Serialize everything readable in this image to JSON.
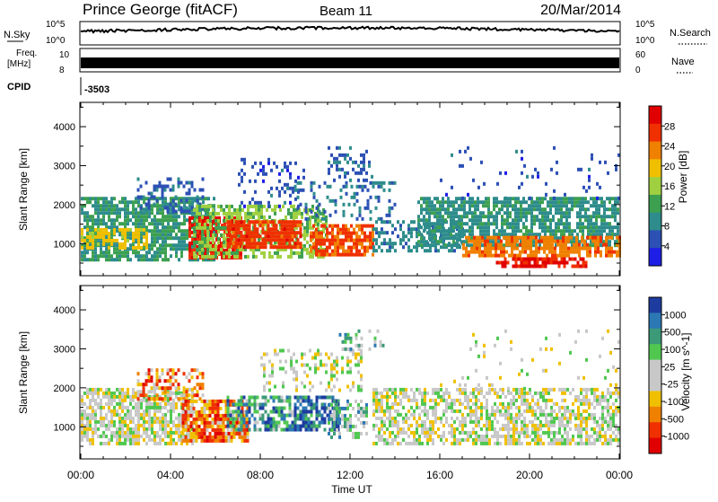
{
  "header": {
    "station": "Prince George (fitACF)",
    "beam": "Beam 11",
    "date": "20/Mar/2014"
  },
  "side_labels": {
    "nsky": "N.Sky",
    "nsearch": "N.Search",
    "freq": "Freq.",
    "freq_unit": "[MHz]",
    "nave": "Nave",
    "cpid": "CPID",
    "cpid_value": "-3503",
    "nsky_ticks": [
      "10^5",
      "10^0"
    ],
    "nsearch_ticks": [
      "10^5",
      "10^0"
    ],
    "freq_ticks": [
      "10",
      "8"
    ],
    "nave_ticks": [
      "60",
      "0"
    ]
  },
  "colors": {
    "power": [
      "#1e1ee6",
      "#2c50b4",
      "#2e8c8c",
      "#3ca050",
      "#a0d040",
      "#f0c000",
      "#f08000",
      "#f03000",
      "#e00000"
    ],
    "velocity": [
      "#e00000",
      "#f03000",
      "#f08000",
      "#f0c000",
      "#c8c8c8",
      "#c8c8c8",
      "#50c850",
      "#3c9a78",
      "#2c78b4",
      "#1e3ca0"
    ]
  },
  "chart_data": [
    {
      "type": "heatmap",
      "title": "Power",
      "ylabel": "Slant Range [km]",
      "xlabel": "",
      "xlim": [
        "00:00",
        "24:00"
      ],
      "ylim": [
        200,
        4600
      ],
      "yticks": [
        1000,
        2000,
        3000,
        4000
      ],
      "colorbar": {
        "label": "Power [dB]",
        "ticks": [
          "28",
          "24",
          "20",
          "16",
          "12",
          "8",
          "4"
        ],
        "range": [
          0,
          30
        ]
      },
      "regions": [
        {
          "t0": 0.0,
          "t1": 6.0,
          "r0": 600,
          "r1": 2200,
          "value": 10,
          "density": 0.75
        },
        {
          "t0": 2.5,
          "t1": 5.5,
          "r0": 1800,
          "r1": 2700,
          "value": 6,
          "density": 0.35
        },
        {
          "t0": 0.0,
          "t1": 3.0,
          "r0": 900,
          "r1": 1400,
          "value": 18,
          "density": 0.6
        },
        {
          "t0": 4.8,
          "t1": 7.2,
          "r0": 600,
          "r1": 1700,
          "value": 27,
          "density": 0.8
        },
        {
          "t0": 5.0,
          "t1": 11.0,
          "r0": 700,
          "r1": 2000,
          "value": 14,
          "density": 0.6
        },
        {
          "t0": 6.5,
          "t1": 9.8,
          "r0": 900,
          "r1": 1600,
          "value": 25,
          "density": 0.8
        },
        {
          "t0": 10.2,
          "t1": 13.0,
          "r0": 700,
          "r1": 1500,
          "value": 24,
          "density": 0.75
        },
        {
          "t0": 9.5,
          "t1": 14.0,
          "r0": 1600,
          "r1": 2600,
          "value": 7,
          "density": 0.25
        },
        {
          "t0": 11.0,
          "t1": 13.0,
          "r0": 2600,
          "r1": 3500,
          "value": 6,
          "density": 0.3
        },
        {
          "t0": 7.0,
          "t1": 10.0,
          "r0": 2000,
          "r1": 3200,
          "value": 5,
          "density": 0.2
        },
        {
          "t0": 13.0,
          "t1": 17.0,
          "r0": 800,
          "r1": 1600,
          "value": 8,
          "density": 0.45
        },
        {
          "t0": 15.0,
          "t1": 24.0,
          "r0": 1000,
          "r1": 2200,
          "value": 9,
          "density": 0.75
        },
        {
          "t0": 17.0,
          "t1": 24.0,
          "r0": 700,
          "r1": 1200,
          "value": 22,
          "density": 0.75
        },
        {
          "t0": 18.5,
          "t1": 22.5,
          "r0": 380,
          "r1": 650,
          "value": 27,
          "density": 0.7
        },
        {
          "t0": 16.0,
          "t1": 24.0,
          "r0": 2200,
          "r1": 3500,
          "value": 5,
          "density": 0.06
        }
      ]
    },
    {
      "type": "heatmap",
      "title": "Velocity",
      "ylabel": "Slant Range [km]",
      "xlabel": "Time UT",
      "xlim": [
        "00:00",
        "24:00"
      ],
      "xticks": [
        "00:00",
        "04:00",
        "08:00",
        "12:00",
        "16:00",
        "20:00",
        "00:00"
      ],
      "ylim": [
        200,
        4600
      ],
      "yticks": [
        1000,
        2000,
        3000,
        4000
      ],
      "colorbar": {
        "label": "Velocity [m s^-1]",
        "ticks": [
          "1000",
          "500",
          "100",
          "25",
          "-25",
          "-100",
          "-500",
          "-1000"
        ]
      },
      "regions": [
        {
          "t0": 0.0,
          "t1": 5.0,
          "r0": 600,
          "r1": 2000,
          "value": 4.5,
          "density": 0.7
        },
        {
          "t0": 2.5,
          "t1": 5.5,
          "r0": 1700,
          "r1": 2500,
          "value": 2.2,
          "density": 0.45
        },
        {
          "t0": 4.5,
          "t1": 7.5,
          "r0": 600,
          "r1": 1700,
          "value": 2.0,
          "density": 0.8
        },
        {
          "t0": 6.5,
          "t1": 10.5,
          "r0": 900,
          "r1": 1800,
          "value": 7.2,
          "density": 0.6
        },
        {
          "t0": 9.5,
          "t1": 11.5,
          "r0": 900,
          "r1": 1800,
          "value": 8.5,
          "density": 0.6
        },
        {
          "t0": 11.0,
          "t1": 12.8,
          "r0": 700,
          "r1": 1700,
          "value": 6.2,
          "density": 0.55
        },
        {
          "t0": 8.0,
          "t1": 12.5,
          "r0": 1900,
          "r1": 3000,
          "value": 4.5,
          "density": 0.3
        },
        {
          "t0": 11.5,
          "t1": 13.5,
          "r0": 3000,
          "r1": 3500,
          "value": 6.0,
          "density": 0.3
        },
        {
          "t0": 13.0,
          "t1": 24.0,
          "r0": 600,
          "r1": 2000,
          "value": 4.5,
          "density": 0.6
        },
        {
          "t0": 16.0,
          "t1": 24.0,
          "r0": 2000,
          "r1": 3500,
          "value": 4.5,
          "density": 0.05
        }
      ]
    }
  ]
}
